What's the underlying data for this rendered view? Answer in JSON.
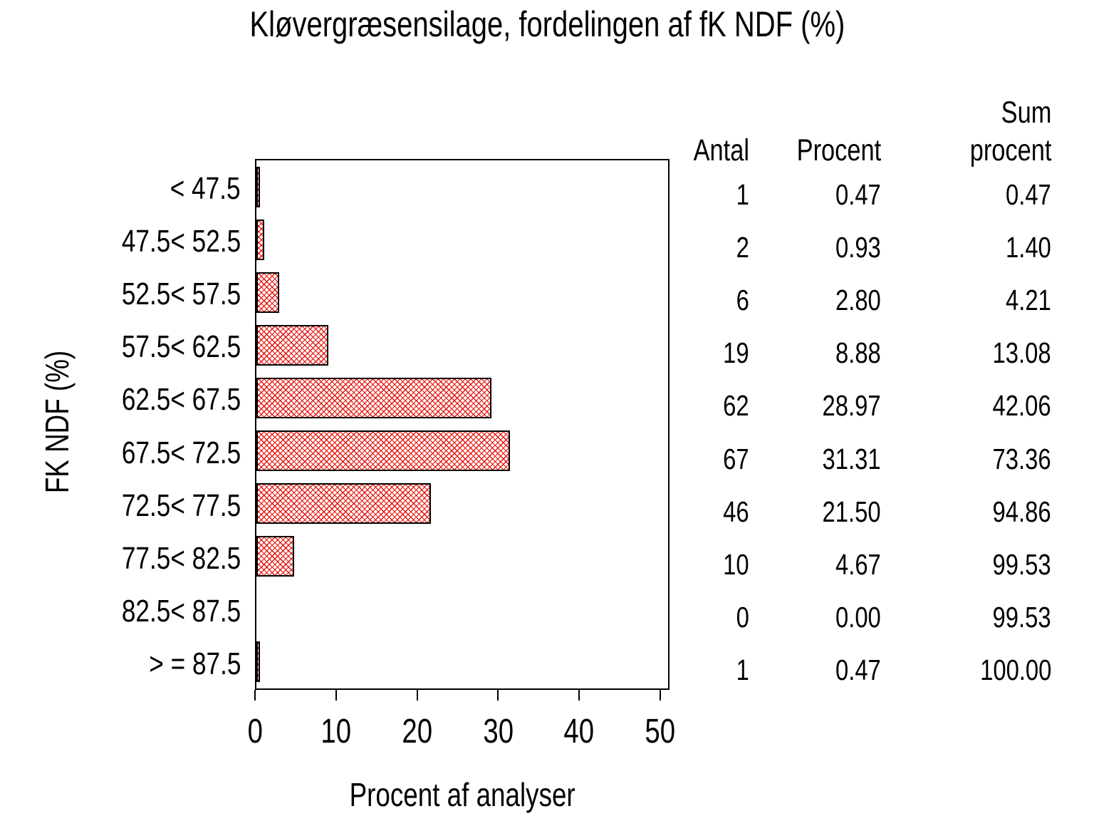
{
  "chart_data": {
    "type": "bar",
    "orientation": "horizontal",
    "title": "Kløvergræsensilage, fordelingen af fK NDF (%)",
    "xlabel": "Procent af analyser",
    "ylabel": "FK NDF (%)",
    "categories": [
      "< 47.5",
      "47.5< 52.5",
      "52.5< 57.5",
      "57.5< 62.5",
      "62.5< 67.5",
      "67.5< 72.5",
      "72.5< 77.5",
      "77.5< 82.5",
      "82.5< 87.5",
      "> = 87.5"
    ],
    "values": [
      0.47,
      0.93,
      2.8,
      8.88,
      28.97,
      31.31,
      21.5,
      4.67,
      0.0,
      0.47
    ],
    "xlim": [
      0,
      51
    ],
    "xticks": [
      0,
      10,
      20,
      30,
      40,
      50
    ],
    "grid": false,
    "legend": "none",
    "bar_fill_style": "red-crosshatch",
    "bar_color": "#e4120b",
    "frame_color": "#000000",
    "table": {
      "headers": {
        "antal": "Antal",
        "procent": "Procent",
        "sum_line1": "Sum",
        "sum_line2": "procent"
      },
      "rows": [
        [
          "1",
          "0.47",
          "0.47"
        ],
        [
          "2",
          "0.93",
          "1.40"
        ],
        [
          "6",
          "2.80",
          "4.21"
        ],
        [
          "19",
          "8.88",
          "13.08"
        ],
        [
          "62",
          "28.97",
          "42.06"
        ],
        [
          "67",
          "31.31",
          "73.36"
        ],
        [
          "46",
          "21.50",
          "94.86"
        ],
        [
          "10",
          "4.67",
          "99.53"
        ],
        [
          "0",
          "0.00",
          "99.53"
        ],
        [
          "1",
          "0.47",
          "100.00"
        ]
      ]
    }
  }
}
